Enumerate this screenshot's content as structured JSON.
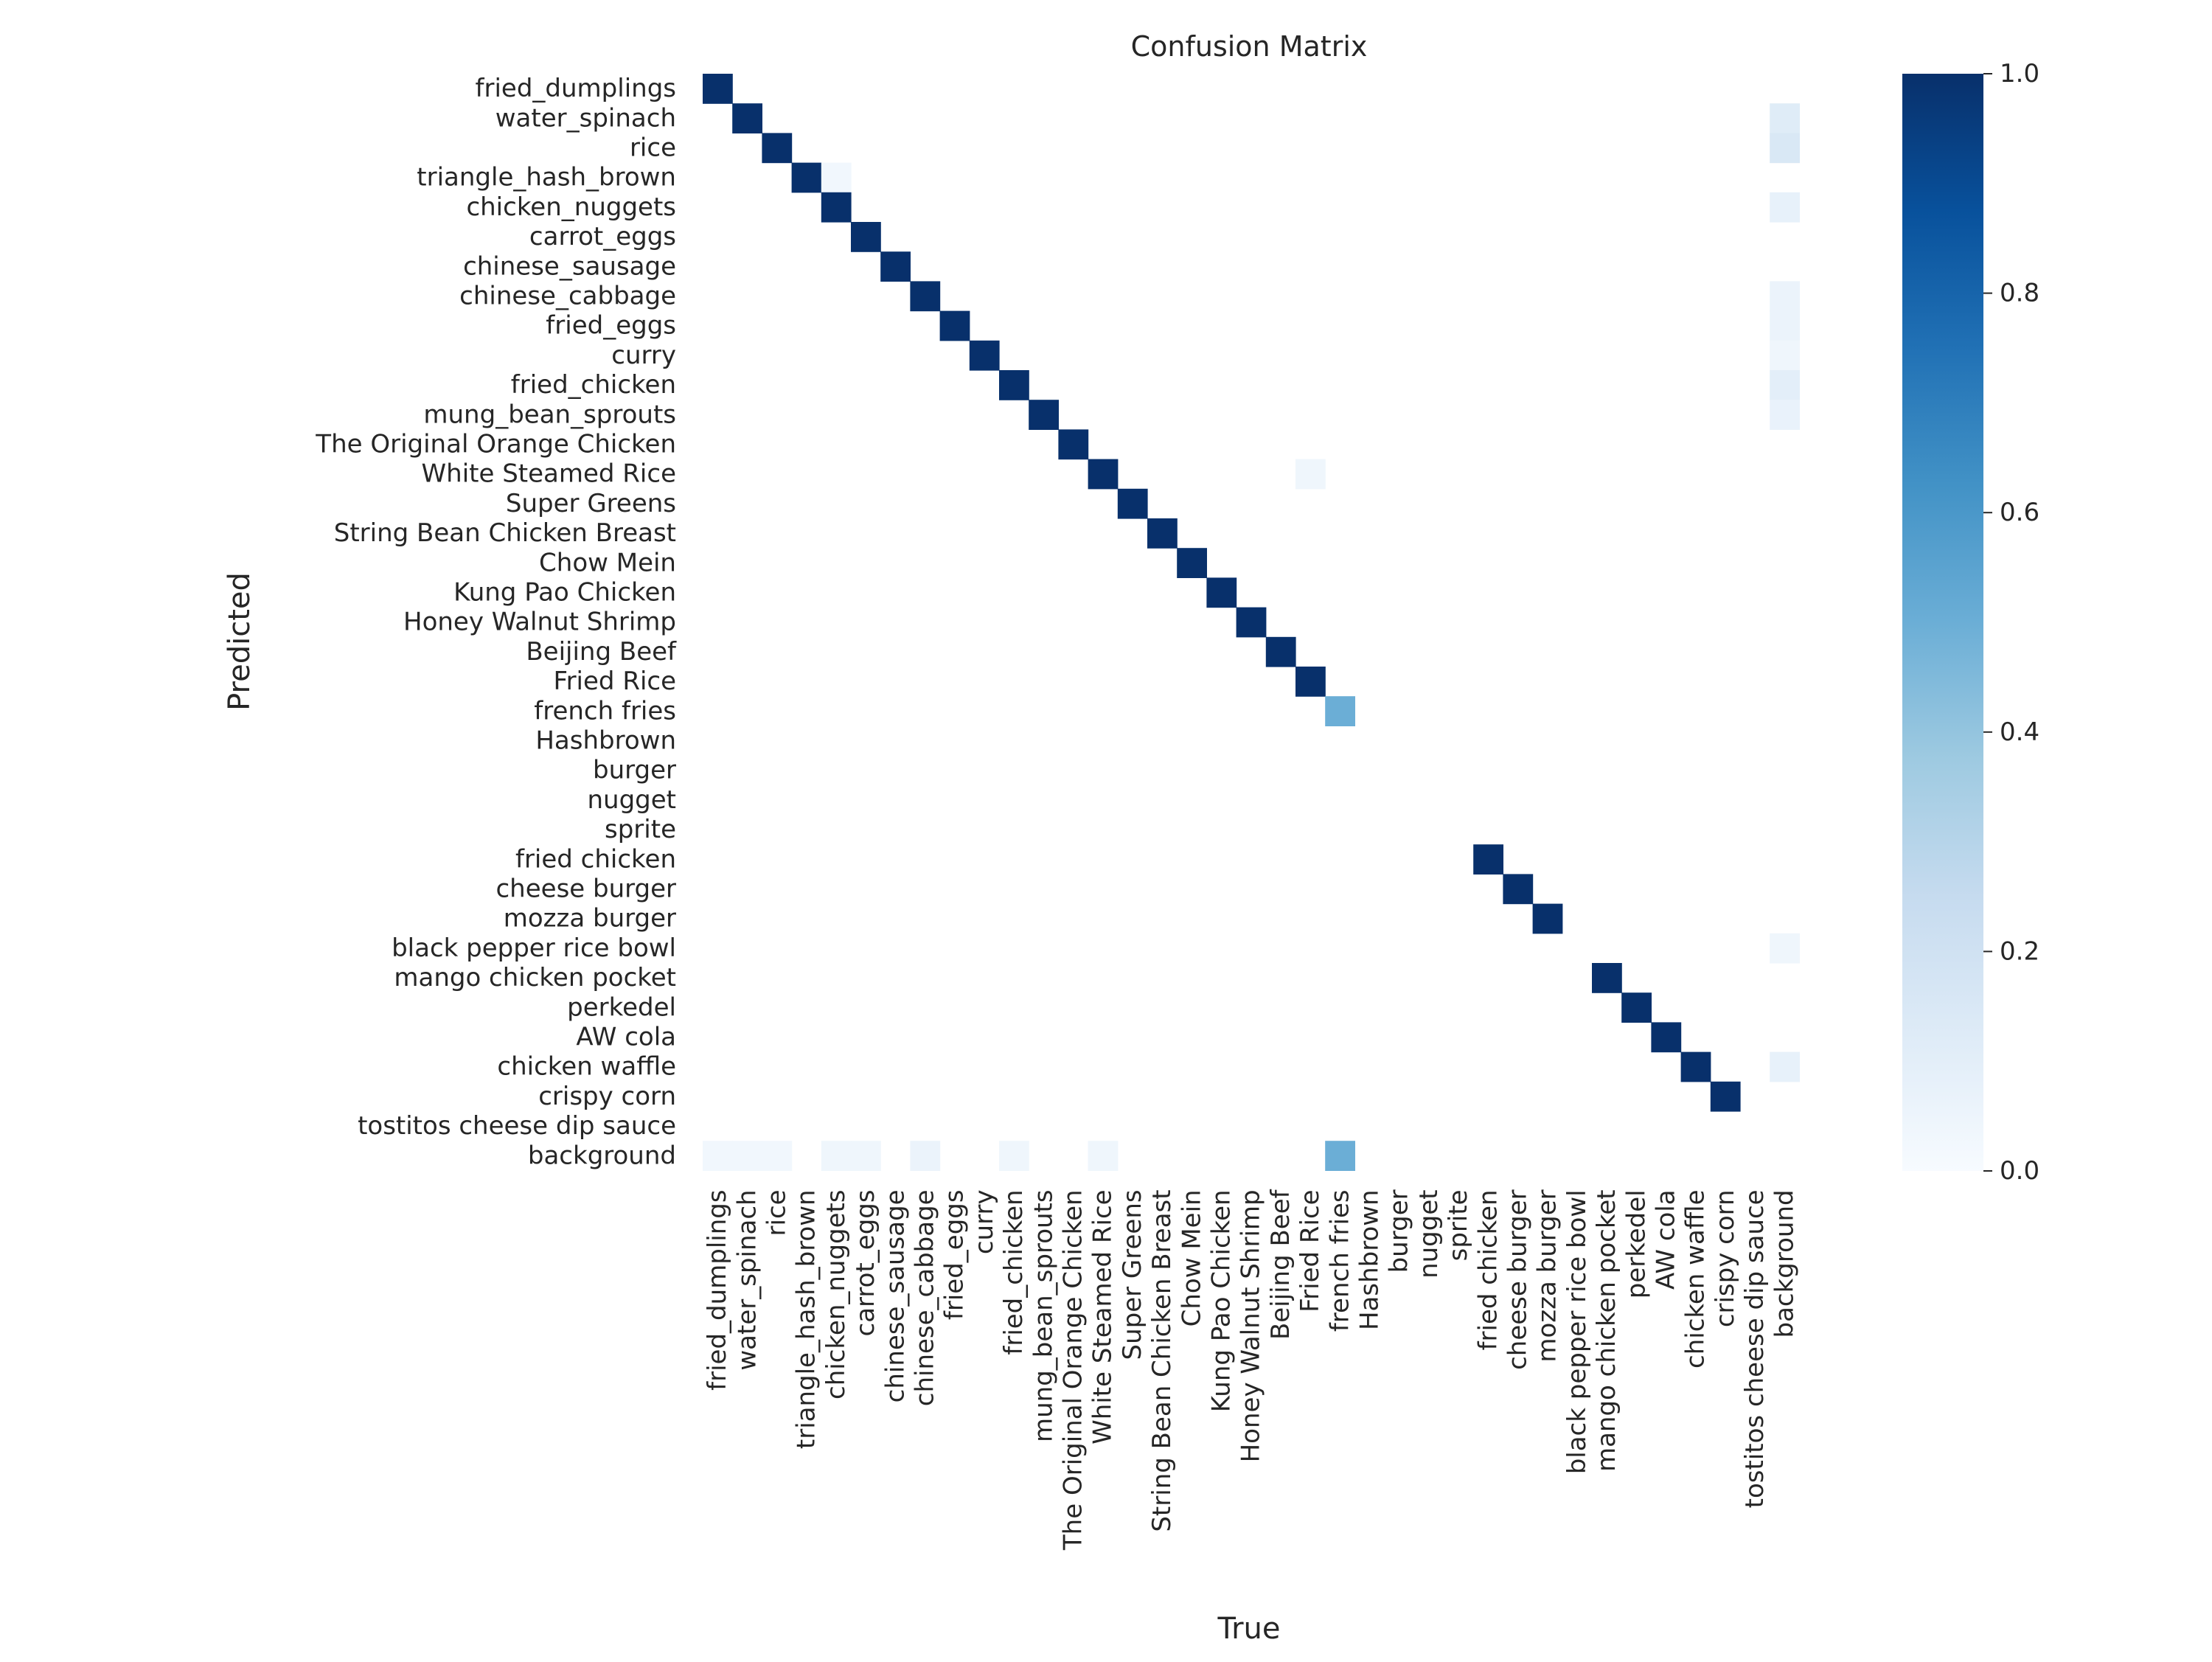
{
  "chart_data": {
    "type": "heatmap",
    "title": "Confusion Matrix",
    "xlabel": "True",
    "ylabel": "Predicted",
    "colormap": "Blues",
    "colorbar": {
      "min": 0.0,
      "max": 1.0,
      "ticks": [
        0.0,
        0.2,
        0.4,
        0.6,
        0.8,
        1.0
      ],
      "tick_labels": [
        "0.0",
        "0.2",
        "0.4",
        "0.6",
        "0.8",
        "1.0"
      ]
    },
    "x_categories": [
      "fried_dumplings",
      "water_spinach",
      "rice",
      "triangle_hash_brown",
      "chicken_nuggets",
      "carrot_eggs",
      "chinese_sausage",
      "chinese_cabbage",
      "fried_eggs",
      "curry",
      "fried_chicken",
      "mung_bean_sprouts",
      "The Original Orange Chicken",
      "White Steamed Rice",
      "Super Greens",
      "String Bean Chicken Breast",
      "Chow Mein",
      "Kung Pao Chicken",
      "Honey Walnut Shrimp",
      "Beijing Beef",
      "Fried Rice",
      "french fries",
      "Hashbrown",
      "burger",
      "nugget",
      "sprite",
      "fried chicken",
      "cheese burger",
      "mozza burger",
      "black pepper rice bowl",
      "mango chicken pocket",
      "perkedel",
      "AW cola",
      "chicken waffle",
      "crispy corn",
      "tostitos cheese dip sauce",
      "background"
    ],
    "y_categories": [
      "fried_dumplings",
      "water_spinach",
      "rice",
      "triangle_hash_brown",
      "chicken_nuggets",
      "carrot_eggs",
      "chinese_sausage",
      "chinese_cabbage",
      "fried_eggs",
      "curry",
      "fried_chicken",
      "mung_bean_sprouts",
      "The Original Orange Chicken",
      "White Steamed Rice",
      "Super Greens",
      "String Bean Chicken Breast",
      "Chow Mein",
      "Kung Pao Chicken",
      "Honey Walnut Shrimp",
      "Beijing Beef",
      "Fried Rice",
      "french fries",
      "Hashbrown",
      "burger",
      "nugget",
      "sprite",
      "fried chicken",
      "cheese burger",
      "mozza burger",
      "black pepper rice bowl",
      "mango chicken pocket",
      "perkedel",
      "AW cola",
      "chicken waffle",
      "crispy corn",
      "tostitos cheese dip sauce",
      "background"
    ],
    "cells": [
      {
        "row": 0,
        "col": 0,
        "value": 1.0
      },
      {
        "row": 1,
        "col": 1,
        "value": 1.0
      },
      {
        "row": 1,
        "col": 36,
        "value": 0.12
      },
      {
        "row": 2,
        "col": 2,
        "value": 1.0
      },
      {
        "row": 2,
        "col": 36,
        "value": 0.15
      },
      {
        "row": 3,
        "col": 3,
        "value": 1.0
      },
      {
        "row": 3,
        "col": 4,
        "value": 0.03
      },
      {
        "row": 4,
        "col": 4,
        "value": 1.0
      },
      {
        "row": 4,
        "col": 36,
        "value": 0.08
      },
      {
        "row": 5,
        "col": 5,
        "value": 1.0
      },
      {
        "row": 6,
        "col": 6,
        "value": 1.0
      },
      {
        "row": 7,
        "col": 7,
        "value": 1.0
      },
      {
        "row": 7,
        "col": 36,
        "value": 0.06
      },
      {
        "row": 8,
        "col": 8,
        "value": 1.0
      },
      {
        "row": 8,
        "col": 36,
        "value": 0.06
      },
      {
        "row": 9,
        "col": 9,
        "value": 1.0
      },
      {
        "row": 9,
        "col": 36,
        "value": 0.04
      },
      {
        "row": 10,
        "col": 10,
        "value": 1.0
      },
      {
        "row": 10,
        "col": 36,
        "value": 0.1
      },
      {
        "row": 11,
        "col": 11,
        "value": 1.0
      },
      {
        "row": 11,
        "col": 36,
        "value": 0.07
      },
      {
        "row": 12,
        "col": 12,
        "value": 1.0
      },
      {
        "row": 13,
        "col": 13,
        "value": 1.0
      },
      {
        "row": 13,
        "col": 20,
        "value": 0.04
      },
      {
        "row": 14,
        "col": 14,
        "value": 1.0
      },
      {
        "row": 15,
        "col": 15,
        "value": 1.0
      },
      {
        "row": 16,
        "col": 16,
        "value": 1.0
      },
      {
        "row": 17,
        "col": 17,
        "value": 1.0
      },
      {
        "row": 18,
        "col": 18,
        "value": 1.0
      },
      {
        "row": 19,
        "col": 19,
        "value": 1.0
      },
      {
        "row": 20,
        "col": 20,
        "value": 1.0
      },
      {
        "row": 21,
        "col": 21,
        "value": 0.5
      },
      {
        "row": 26,
        "col": 26,
        "value": 1.0
      },
      {
        "row": 27,
        "col": 27,
        "value": 1.0
      },
      {
        "row": 28,
        "col": 28,
        "value": 1.0
      },
      {
        "row": 29,
        "col": 36,
        "value": 0.04
      },
      {
        "row": 30,
        "col": 30,
        "value": 1.0
      },
      {
        "row": 31,
        "col": 31,
        "value": 1.0
      },
      {
        "row": 32,
        "col": 32,
        "value": 1.0
      },
      {
        "row": 33,
        "col": 33,
        "value": 1.0
      },
      {
        "row": 33,
        "col": 36,
        "value": 0.08
      },
      {
        "row": 34,
        "col": 34,
        "value": 1.0
      },
      {
        "row": 36,
        "col": 0,
        "value": 0.03
      },
      {
        "row": 36,
        "col": 1,
        "value": 0.03
      },
      {
        "row": 36,
        "col": 2,
        "value": 0.03
      },
      {
        "row": 36,
        "col": 4,
        "value": 0.04
      },
      {
        "row": 36,
        "col": 5,
        "value": 0.04
      },
      {
        "row": 36,
        "col": 7,
        "value": 0.06
      },
      {
        "row": 36,
        "col": 10,
        "value": 0.04
      },
      {
        "row": 36,
        "col": 13,
        "value": 0.04
      },
      {
        "row": 36,
        "col": 21,
        "value": 0.5
      }
    ]
  }
}
